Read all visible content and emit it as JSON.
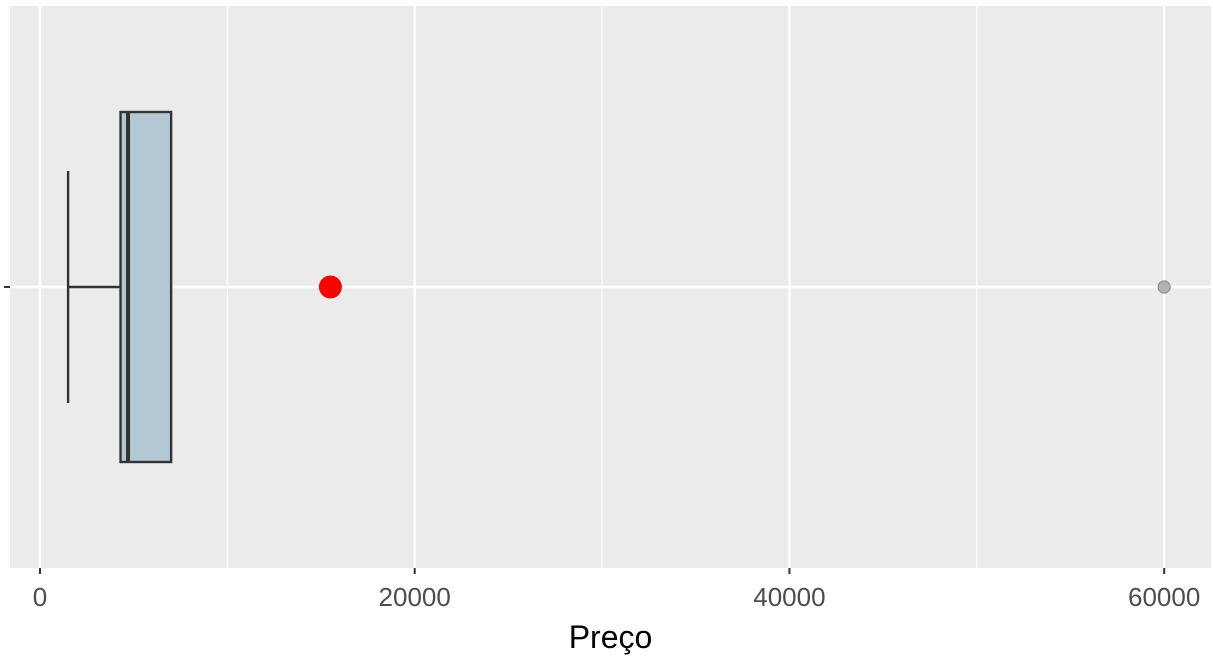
{
  "chart_data": {
    "type": "boxplot",
    "orientation": "horizontal",
    "title": "",
    "xlabel": "Preço",
    "ylabel": "",
    "xlim": [
      -1600,
      62500
    ],
    "x_ticks": [
      0,
      20000,
      40000,
      60000
    ],
    "x_tick_labels": [
      "0",
      "20000",
      "40000",
      "60000"
    ],
    "minor_gridlines": [
      10000,
      30000,
      50000
    ],
    "grid": true,
    "legend": "none",
    "box": {
      "whisker_low": 1500,
      "q1": 4300,
      "median": 4700,
      "q3": 7000,
      "whisker_high": 7000,
      "outliers": [
        60000
      ]
    },
    "highlight_point": {
      "value": 15500
    },
    "colors": {
      "panel_background": "#ebebeb",
      "gridline": "#ffffff",
      "box_fill": "#b4c8d4",
      "box_stroke": "#333333",
      "outlier_fill": "#b3b3b3",
      "highlight_fill": "#ff0000",
      "tick_label": "#4d4d4d",
      "axis_title": "#000000"
    }
  }
}
